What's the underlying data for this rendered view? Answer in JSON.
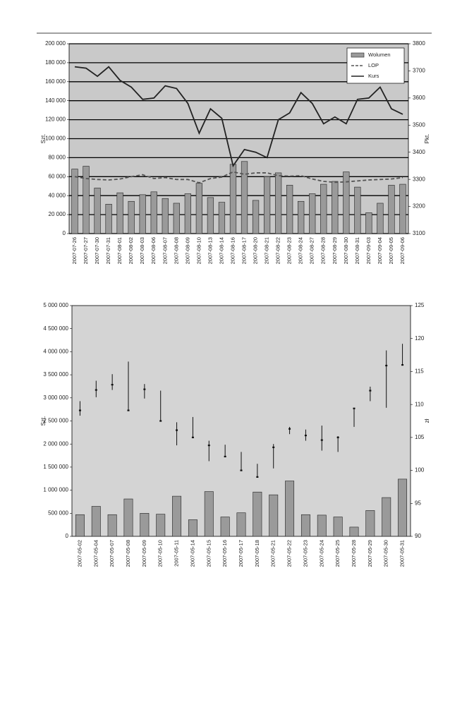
{
  "chart_data": [
    {
      "type": "bar-line",
      "categories": [
        "2007-07-26",
        "2007-07-27",
        "2007-07-30",
        "2007-07-31",
        "2007-08-01",
        "2007-08-02",
        "2007-08-03",
        "2007-08-06",
        "2007-08-07",
        "2007-08-08",
        "2007-08-09",
        "2007-08-10",
        "2007-08-13",
        "2007-08-14",
        "2007-08-16",
        "2007-08-17",
        "2007-08-20",
        "2007-08-21",
        "2007-08-22",
        "2007-08-23",
        "2007-08-24",
        "2007-08-27",
        "2007-08-28",
        "2007-08-29",
        "2007-08-30",
        "2007-08-31",
        "2007-09-03",
        "2007-09-04",
        "2007-09-05",
        "2007-09-06"
      ],
      "series": [
        {
          "name": "Wolumen",
          "type": "bar",
          "color": "#9a9a9a",
          "values": [
            68000,
            71000,
            48000,
            31000,
            43000,
            34000,
            41000,
            44000,
            37000,
            32000,
            42000,
            53000,
            38000,
            33000,
            73000,
            76000,
            35000,
            60000,
            64000,
            51000,
            34000,
            42000,
            52000,
            55000,
            65000,
            49000,
            22000,
            32000,
            51000,
            52000
          ]
        },
        {
          "name": "LOP",
          "type": "line",
          "linestyle": "dashed",
          "color": "#555555",
          "values": [
            60000,
            58000,
            57000,
            56500,
            57500,
            60000,
            62000,
            58000,
            59000,
            57000,
            57000,
            53500,
            58000,
            59500,
            65000,
            62500,
            64000,
            64000,
            61000,
            60500,
            61000,
            57500,
            55000,
            54000,
            54500,
            55500,
            56500,
            57000,
            57500,
            59000
          ]
        },
        {
          "name": "Kurs",
          "type": "line",
          "linestyle": "solid",
          "color": "#222222",
          "axis": "y2",
          "values": [
            3715,
            3710,
            3680,
            3715,
            3665,
            3640,
            3595,
            3600,
            3645,
            3635,
            3580,
            3470,
            3560,
            3525,
            3350,
            3410,
            3400,
            3380,
            3520,
            3545,
            3620,
            3580,
            3505,
            3530,
            3505,
            3595,
            3600,
            3640,
            3560,
            3540
          ]
        }
      ],
      "ylabel": "Szt.",
      "y2label": "Pkt.",
      "ylim": [
        0,
        200000
      ],
      "yticks": [
        0,
        {
          "value": 20000,
          "label": "20 000"
        },
        {
          "value": 40000,
          "label": "40 000"
        },
        {
          "value": 60000,
          "label": "60 000"
        },
        {
          "value": 80000,
          "label": "80 000"
        },
        {
          "value": 100000,
          "label": "100 000"
        },
        {
          "value": 120000,
          "label": "120 000"
        },
        {
          "value": 140000,
          "label": "140 000"
        },
        {
          "value": 160000,
          "label": "160 000"
        },
        {
          "value": 180000,
          "label": "180 000"
        },
        {
          "value": 200000,
          "label": "200 000"
        }
      ],
      "y2lim": [
        3100,
        3800
      ],
      "y2ticks": [
        3100,
        3200,
        3300,
        3400,
        3500,
        3600,
        3700,
        3800
      ],
      "grid": true,
      "legend": "upper right"
    },
    {
      "type": "bar-hlc",
      "categories": [
        "2007-05-02",
        "2007-05-04",
        "2007-05-07",
        "2007-05-08",
        "2007-05-09",
        "2007-05-10",
        "2007-05-11",
        "2007-05-14",
        "2007-05-15",
        "2007-05-16",
        "2007-05-17",
        "2007-05-18",
        "2007-05-21",
        "2007-05-22",
        "2007-05-23",
        "2007-05-24",
        "2007-05-25",
        "2007-05-28",
        "2007-05-29",
        "2007-05-30",
        "2007-05-31"
      ],
      "values": [
        470000,
        650000,
        470000,
        810000,
        500000,
        480000,
        870000,
        360000,
        970000,
        420000,
        510000,
        960000,
        900000,
        1200000,
        470000,
        460000,
        420000,
        200000,
        560000,
        840000,
        1240000
      ],
      "color": "#9a9a9a",
      "high": [
        110.5,
        113.6,
        114.6,
        116.5,
        113.1,
        112.1,
        107.3,
        108.1,
        104.5,
        103.9,
        102.8,
        101.0,
        104.0,
        106.6,
        106.2,
        106.8,
        105.2,
        109.5,
        112.7,
        118.2,
        119.2
      ],
      "low": [
        108.3,
        111.1,
        112.2,
        109.1,
        110.9,
        107.5,
        103.8,
        104.9,
        101.4,
        102.0,
        99.9,
        98.9,
        100.3,
        105.5,
        104.5,
        103.0,
        102.8,
        106.6,
        110.5,
        109.5,
        115.9
      ],
      "close": [
        109.1,
        112.2,
        113.0,
        109.1,
        112.3,
        107.5,
        106.1,
        105.0,
        103.8,
        102.1,
        100.0,
        99.0,
        103.5,
        106.3,
        105.3,
        104.6,
        105.0,
        109.4,
        112.1,
        115.9,
        116.0
      ],
      "line_color": "#111111",
      "ylabel": "Szt.",
      "y2label": "zł",
      "ylim": [
        0,
        5000000
      ],
      "yticks": [
        0,
        {
          "value": 500000,
          "label": "500 000"
        },
        {
          "value": 1000000,
          "label": "1 000 000"
        },
        {
          "value": 1500000,
          "label": "1 500 000"
        },
        {
          "value": 2000000,
          "label": "2 000 000"
        },
        {
          "value": 2500000,
          "label": "2 500 000"
        },
        {
          "value": 3000000,
          "label": "3 000 000"
        },
        {
          "value": 3500000,
          "label": "3 500 000"
        },
        {
          "value": 4000000,
          "label": "4 000 000"
        },
        {
          "value": 4500000,
          "label": "4 500 000"
        },
        {
          "value": 5000000,
          "label": "5 000 000"
        }
      ],
      "y2lim": [
        90,
        125
      ],
      "y2ticks": [
        90,
        95,
        100,
        105,
        110,
        115,
        120,
        125
      ],
      "grid": false
    }
  ]
}
